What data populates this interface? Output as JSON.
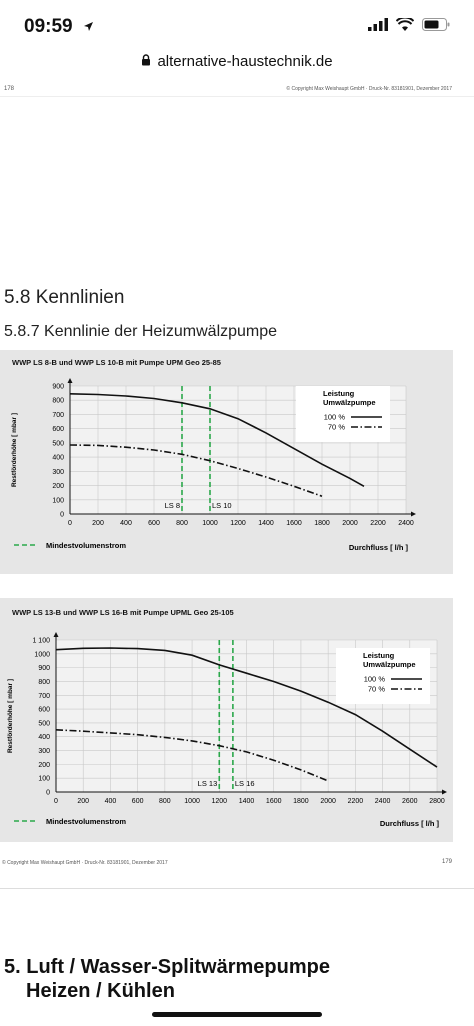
{
  "status": {
    "time": "09:59"
  },
  "browser": {
    "url": "alternative-haustechnik.de"
  },
  "page1": {
    "page_number": "178",
    "copyright": "© Copyright Max Weishaupt GmbH · Druck-Nr. 83181901, Dezember 2017",
    "section_title": "5.8 Kennlinien",
    "subsection_title": "5.8.7 Kennlinie der Heizumwälzpumpe"
  },
  "page2": {
    "copyright": "© Copyright Max Weishaupt GmbH · Druck-Nr. 83181901, Dezember 2017",
    "page_number": "179"
  },
  "page3": {
    "chapter_line1": "5. Luft / Wasser-Splitwärmepumpe",
    "chapter_line2": "Heizen / Kühlen"
  },
  "chart_data": [
    {
      "type": "line",
      "title": "WWP LS 8-B und WWP LS 10-B mit Pumpe UPM Geo 25-85",
      "ylabel": "Restförderhöhe [ mbar ]",
      "xlabel": "Durchfluss [ l/h ]",
      "xlim": [
        0,
        2400
      ],
      "ylim": [
        0,
        900
      ],
      "xticks": [
        0,
        200,
        400,
        600,
        800,
        1000,
        1200,
        1400,
        1600,
        1800,
        2000,
        2200,
        2400
      ],
      "yticks": [
        0,
        100,
        200,
        300,
        400,
        500,
        600,
        700,
        800,
        900
      ],
      "grid": true,
      "legend_title": "Leistung Umwälzpumpe",
      "legend_title_lines": [
        "Leistung",
        "Umwälzpumpe"
      ],
      "legend_position": "top-right",
      "series": [
        {
          "name": "100 %",
          "style": "solid",
          "x": [
            0,
            200,
            400,
            600,
            800,
            1000,
            1200,
            1400,
            1600,
            1800,
            2000,
            2100
          ],
          "y": [
            845,
            840,
            830,
            812,
            782,
            740,
            670,
            570,
            460,
            350,
            250,
            195
          ]
        },
        {
          "name": "70 %",
          "style": "dashdot",
          "x": [
            0,
            200,
            400,
            600,
            800,
            1000,
            1200,
            1400,
            1600,
            1800
          ],
          "y": [
            485,
            482,
            470,
            450,
            420,
            375,
            320,
            260,
            195,
            125
          ]
        }
      ],
      "markers": [
        {
          "label": "LS 8",
          "x": 800
        },
        {
          "label": "LS 10",
          "x": 1000
        }
      ],
      "marker_legend": "Mindestvolumenstrom",
      "marker_color": "#2aa84a"
    },
    {
      "type": "line",
      "title": "WWP LS 13-B und WWP LS 16-B mit Pumpe UPML Geo 25-105",
      "ylabel": "Restförderhöhe [ mbar ]",
      "xlabel": "Durchfluss [ l/h ]",
      "xlim": [
        0,
        2800
      ],
      "ylim": [
        0,
        1100
      ],
      "xticks": [
        0,
        200,
        400,
        600,
        800,
        1000,
        1200,
        1400,
        1600,
        1800,
        2000,
        2200,
        2400,
        2600,
        2800
      ],
      "yticks": [
        0,
        100,
        200,
        300,
        400,
        500,
        600,
        700,
        800,
        900,
        1000,
        1100
      ],
      "ytick_labels": [
        "0",
        "100",
        "200",
        "300",
        "400",
        "500",
        "600",
        "700",
        "800",
        "900",
        "1000",
        "1 100"
      ],
      "grid": true,
      "legend_title": "Leistung Umwälzpumpe",
      "legend_title_lines": [
        "Leistung",
        "Umwälzpumpe"
      ],
      "legend_position": "top-right",
      "series": [
        {
          "name": "100 %",
          "style": "solid",
          "x": [
            0,
            200,
            400,
            600,
            800,
            1000,
            1200,
            1400,
            1600,
            1800,
            2000,
            2200,
            2400,
            2600,
            2800
          ],
          "y": [
            1030,
            1040,
            1042,
            1038,
            1025,
            990,
            920,
            860,
            800,
            730,
            650,
            560,
            440,
            310,
            180
          ]
        },
        {
          "name": "70 %",
          "style": "dashdot",
          "x": [
            0,
            200,
            400,
            600,
            800,
            1000,
            1200,
            1400,
            1600,
            1800,
            2000
          ],
          "y": [
            450,
            440,
            428,
            415,
            395,
            370,
            335,
            290,
            230,
            160,
            80
          ]
        }
      ],
      "markers": [
        {
          "label": "LS 13",
          "x": 1200
        },
        {
          "label": "LS 16",
          "x": 1300
        }
      ],
      "marker_legend": "Mindestvolumenstrom",
      "marker_color": "#2aa84a"
    }
  ]
}
